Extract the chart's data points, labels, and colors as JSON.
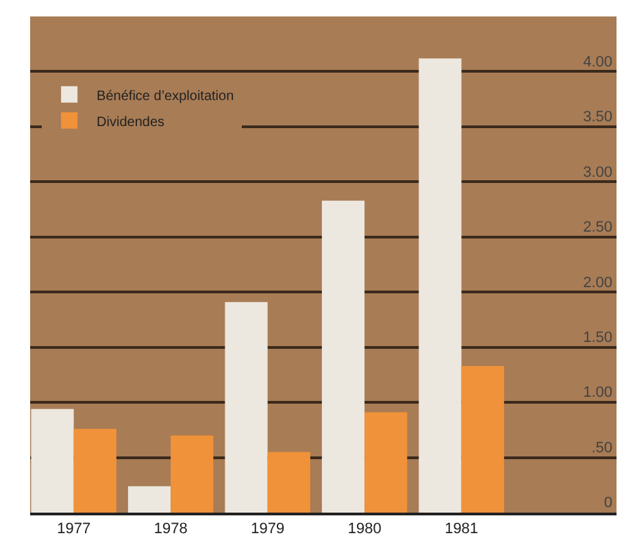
{
  "chart_data": {
    "type": "bar",
    "categories": [
      "1977",
      "1978",
      "1979",
      "1980",
      "1981"
    ],
    "series": [
      {
        "name": "Bénéfice d’exploitation",
        "color": "#ece7df",
        "values": [
          0.94,
          0.24,
          1.91,
          2.83,
          4.12
        ]
      },
      {
        "name": "Dividendes",
        "color": "#f0923a",
        "values": [
          0.76,
          0.7,
          0.55,
          0.91,
          1.33
        ]
      }
    ],
    "ylim": [
      0,
      4.5
    ],
    "yticks": [
      {
        "value": 0,
        "label": "0"
      },
      {
        "value": 0.5,
        "label": ".50"
      },
      {
        "value": 1,
        "label": "1.00"
      },
      {
        "value": 1.5,
        "label": "1.50"
      },
      {
        "value": 2,
        "label": "2.00"
      },
      {
        "value": 2.5,
        "label": "2.50"
      },
      {
        "value": 3,
        "label": "3.00"
      },
      {
        "value": 3.5,
        "label": "3.50"
      },
      {
        "value": 4,
        "label": "4.00"
      }
    ],
    "grid": "y",
    "legend": "top left"
  }
}
